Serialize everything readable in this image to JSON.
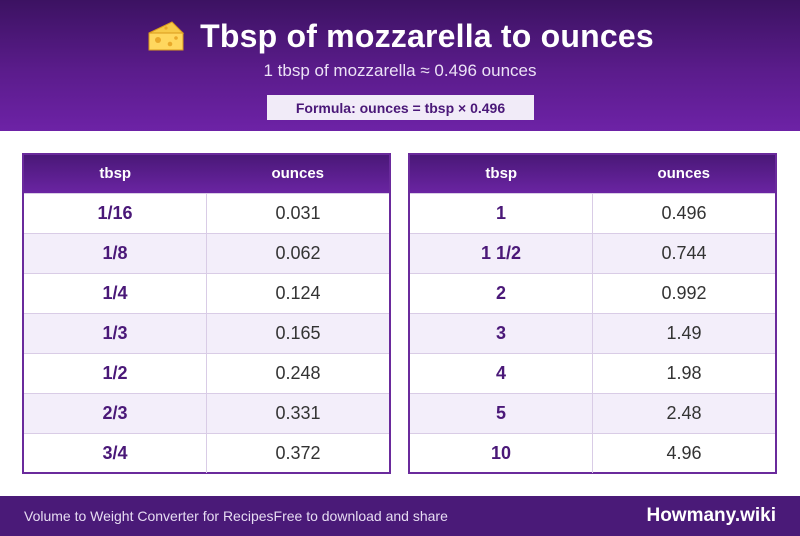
{
  "header": {
    "title": "Tbsp of mozzarella to ounces",
    "subtitle": "1 tbsp of mozzarella ≈ 0.496 ounces",
    "formula": "Formula: ounces = tbsp × 0.496",
    "icon": "cheese-icon"
  },
  "tables": {
    "left": {
      "headers": [
        "tbsp",
        "ounces"
      ],
      "rows": [
        {
          "tbsp": "1/16",
          "ounces": "0.031"
        },
        {
          "tbsp": "1/8",
          "ounces": "0.062"
        },
        {
          "tbsp": "1/4",
          "ounces": "0.124"
        },
        {
          "tbsp": "1/3",
          "ounces": "0.165"
        },
        {
          "tbsp": "1/2",
          "ounces": "0.248"
        },
        {
          "tbsp": "2/3",
          "ounces": "0.331"
        },
        {
          "tbsp": "3/4",
          "ounces": "0.372"
        }
      ]
    },
    "right": {
      "headers": [
        "tbsp",
        "ounces"
      ],
      "rows": [
        {
          "tbsp": "1",
          "ounces": "0.496"
        },
        {
          "tbsp": "1 1/2",
          "ounces": "0.744"
        },
        {
          "tbsp": "2",
          "ounces": "0.992"
        },
        {
          "tbsp": "3",
          "ounces": "1.49"
        },
        {
          "tbsp": "4",
          "ounces": "1.98"
        },
        {
          "tbsp": "5",
          "ounces": "2.48"
        },
        {
          "tbsp": "10",
          "ounces": "4.96"
        }
      ]
    }
  },
  "footer": {
    "left": "Volume to Weight Converter for Recipes",
    "middle": "Free to download and share",
    "brand": "Howmany.wiki"
  },
  "colors": {
    "header_dark": "#3c1262",
    "header_light": "#6d22a6",
    "accent_text": "#4a1878",
    "row_alt": "#f3eefa",
    "footer": "#4a1a78"
  }
}
